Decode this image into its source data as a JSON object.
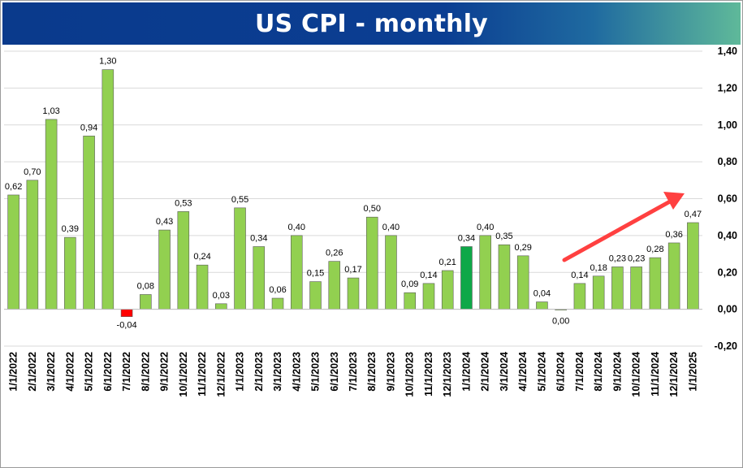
{
  "title": "US CPI - monthly",
  "colors": {
    "bar": "#92d050",
    "bar_highlight": "#0ea848",
    "bar_negative": "#ff0000",
    "arrow": "#ff4040",
    "grid": "#d9d9d9"
  },
  "chart_data": {
    "type": "bar",
    "categories": [
      "1/1/2022",
      "2/1/2022",
      "3/1/2022",
      "4/1/2022",
      "5/1/2022",
      "6/1/2022",
      "7/1/2022",
      "8/1/2022",
      "9/1/2022",
      "10/1/2022",
      "11/1/2022",
      "12/1/2022",
      "1/1/2023",
      "2/1/2023",
      "3/1/2023",
      "4/1/2023",
      "5/1/2023",
      "6/1/2023",
      "7/1/2023",
      "8/1/2023",
      "9/1/2023",
      "10/1/2023",
      "11/1/2023",
      "12/1/2023",
      "1/1/2024",
      "2/1/2024",
      "3/1/2024",
      "4/1/2024",
      "5/1/2024",
      "6/1/2024",
      "7/1/2024",
      "8/1/2024",
      "9/1/2024",
      "10/1/2024",
      "11/1/2024",
      "12/1/2024",
      "1/1/2025"
    ],
    "values": [
      0.62,
      0.7,
      1.03,
      0.39,
      0.94,
      1.3,
      -0.04,
      0.08,
      0.43,
      0.53,
      0.24,
      0.03,
      0.55,
      0.34,
      0.06,
      0.4,
      0.15,
      0.26,
      0.17,
      0.5,
      0.4,
      0.09,
      0.14,
      0.21,
      0.34,
      0.4,
      0.35,
      0.29,
      0.04,
      0.0,
      0.14,
      0.18,
      0.23,
      0.23,
      0.28,
      0.36,
      0.47
    ],
    "labels": [
      "0,62",
      "0,70",
      "1,03",
      "0,39",
      "0,94",
      "1,30",
      "-0,04",
      "0,08",
      "0,43",
      "0,53",
      "0,24",
      "0,03",
      "0,55",
      "0,34",
      "0,06",
      "0,40",
      "0,15",
      "0,26",
      "0,17",
      "0,50",
      "0,40",
      "0,09",
      "0,14",
      "0,21",
      "0,34",
      "0,40",
      "0,35",
      "0,29",
      "0,04",
      "0,00",
      "0,14",
      "0,18",
      "0,23",
      "0,23",
      "0,28",
      "0,36",
      "0,47"
    ],
    "highlight_category": "1/1/2024",
    "yticks": [
      "1,40",
      "1,20",
      "1,00",
      "0,80",
      "0,60",
      "0,40",
      "0,20",
      "0,00",
      "-0,20"
    ],
    "ytick_values": [
      1.4,
      1.2,
      1.0,
      0.8,
      0.6,
      0.4,
      0.2,
      0.0,
      -0.2
    ],
    "ylim": [
      -0.2,
      1.4
    ],
    "grid": true,
    "yaxis_position": "right",
    "annotation": "red upward arrow from 5/1/2024 toward top-right"
  }
}
